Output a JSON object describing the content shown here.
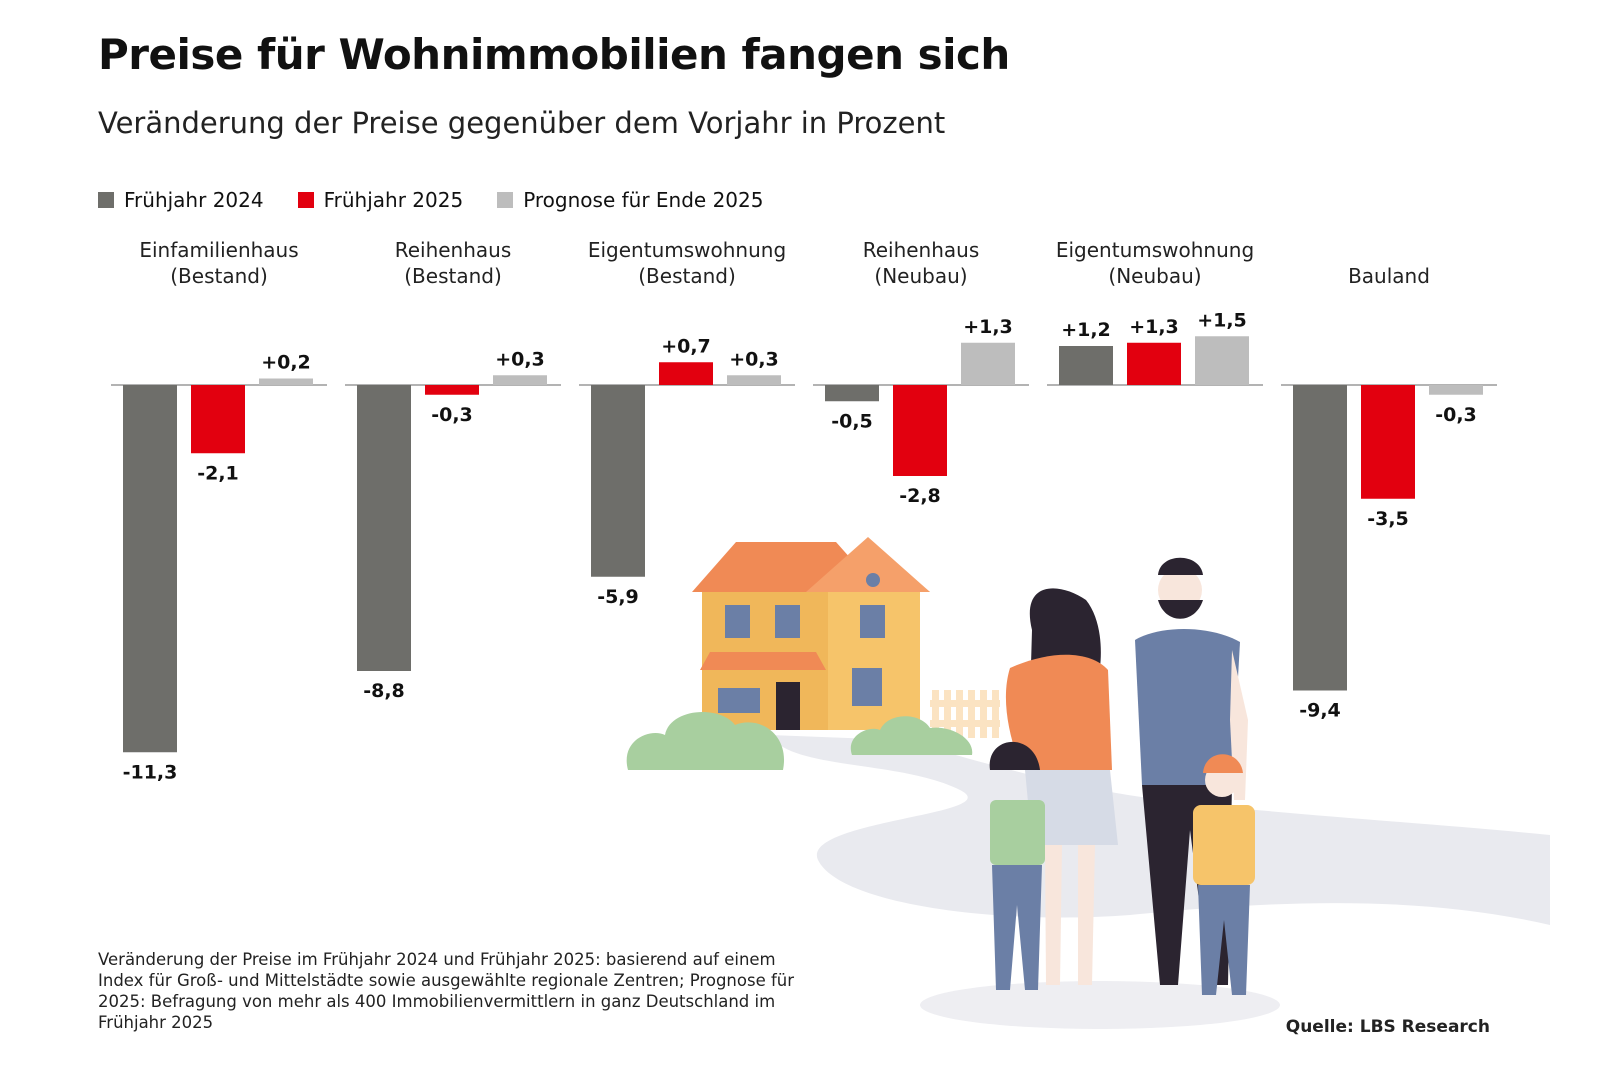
{
  "title": "Preise für Wohnimmobilien fangen sich",
  "subtitle": "Veränderung der Preise gegenüber dem Vorjahr in Prozent",
  "colors": {
    "fruehjahr_2024": "#6e6e6a",
    "fruehjahr_2025": "#e2000f",
    "prognose_2025": "#bdbdbd",
    "baseline": "#9a9a9a"
  },
  "legend": [
    {
      "label": "Frühjahr 2024",
      "color": "#6e6e6a"
    },
    {
      "label": "Frühjahr 2025",
      "color": "#e2000f"
    },
    {
      "label": "Prognose für Ende 2025",
      "color": "#bdbdbd"
    }
  ],
  "chart_data": {
    "type": "bar",
    "categories": [
      [
        "Einfamilienhaus",
        "(Bestand)"
      ],
      [
        "Reihenhaus",
        "(Bestand)"
      ],
      [
        "Eigentumswohnung",
        "(Bestand)"
      ],
      [
        "Reihenhaus",
        "(Neubau)"
      ],
      [
        "Eigentumswohnung",
        "(Neubau)"
      ],
      [
        "Bauland"
      ]
    ],
    "series": [
      {
        "name": "Frühjahr 2024",
        "values": [
          -11.3,
          -8.8,
          -5.9,
          -0.5,
          1.2,
          -9.4
        ],
        "labels": [
          "-11,3",
          "-8,8",
          "-5,9",
          "-0,5",
          "+1,2",
          "-9,4"
        ]
      },
      {
        "name": "Frühjahr 2025",
        "values": [
          -2.1,
          -0.3,
          0.7,
          -2.8,
          1.3,
          -3.5
        ],
        "labels": [
          "-2,1",
          "-0,3",
          "+0,7",
          "-2,8",
          "+1,3",
          "-3,5"
        ]
      },
      {
        "name": "Prognose für Ende 2025",
        "values": [
          0.2,
          0.3,
          0.3,
          1.3,
          1.5,
          -0.3
        ],
        "labels": [
          "+0,2",
          "+0,3",
          "+0,3",
          "+1,3",
          "+1,5",
          "-0,3"
        ]
      }
    ],
    "ylabel": "Veränderung der Preise gegenüber dem Vorjahr in Prozent",
    "grid": false,
    "legend_position": "top-left"
  },
  "footnote": "Veränderung der Preise im Frühjahr 2024 und Frühjahr 2025: basierend auf einem Index für Groß- und Mittelstädte sowie ausgewählte regionale Zentren; Prognose für 2025: Befragung von mehr als 400 Immobilienvermittlern in ganz Deutschland im Frühjahr 2025",
  "source": "Quelle: LBS Research"
}
